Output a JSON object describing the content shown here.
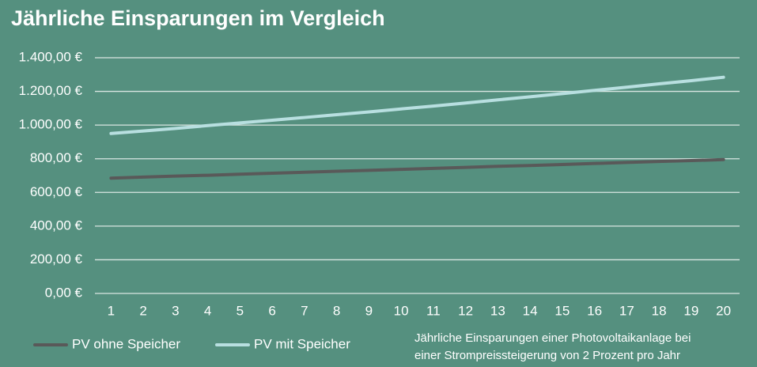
{
  "chart_data": {
    "type": "line",
    "title": "Jährliche Einsparungen im Vergleich",
    "categories": [
      "1",
      "2",
      "3",
      "4",
      "5",
      "6",
      "7",
      "8",
      "9",
      "10",
      "11",
      "12",
      "13",
      "14",
      "15",
      "16",
      "17",
      "18",
      "19",
      "20"
    ],
    "series": [
      {
        "name": "PV ohne Speicher",
        "color": "#595959",
        "values": [
          685,
          691,
          697,
          702,
          708,
          714,
          720,
          726,
          731,
          737,
          743,
          749,
          755,
          760,
          766,
          772,
          778,
          784,
          789,
          795
        ]
      },
      {
        "name": "PV mit Speicher",
        "color": "#b8dfe0",
        "values": [
          950,
          965,
          980,
          997,
          1013,
          1029,
          1045,
          1062,
          1078,
          1096,
          1113,
          1131,
          1150,
          1168,
          1187,
          1206,
          1225,
          1245,
          1264,
          1284
        ]
      }
    ],
    "ylim": [
      0,
      1400
    ],
    "yticks": [
      {
        "value": 0,
        "label": "0,00 €"
      },
      {
        "value": 200,
        "label": "200,00 €"
      },
      {
        "value": 400,
        "label": "400,00 €"
      },
      {
        "value": 600,
        "label": "600,00 €"
      },
      {
        "value": 800,
        "label": "800,00 €"
      },
      {
        "value": 1000,
        "label": "1.000,00 €"
      },
      {
        "value": 1200,
        "label": "1.200,00 €"
      },
      {
        "value": 1400,
        "label": "1.400,00 €"
      }
    ],
    "grid": true,
    "note": [
      "Jährliche Einsparungen einer Photovoltaikanlage bei",
      "einer Strompreissteigerung von 2 Prozent pro Jahr"
    ]
  }
}
